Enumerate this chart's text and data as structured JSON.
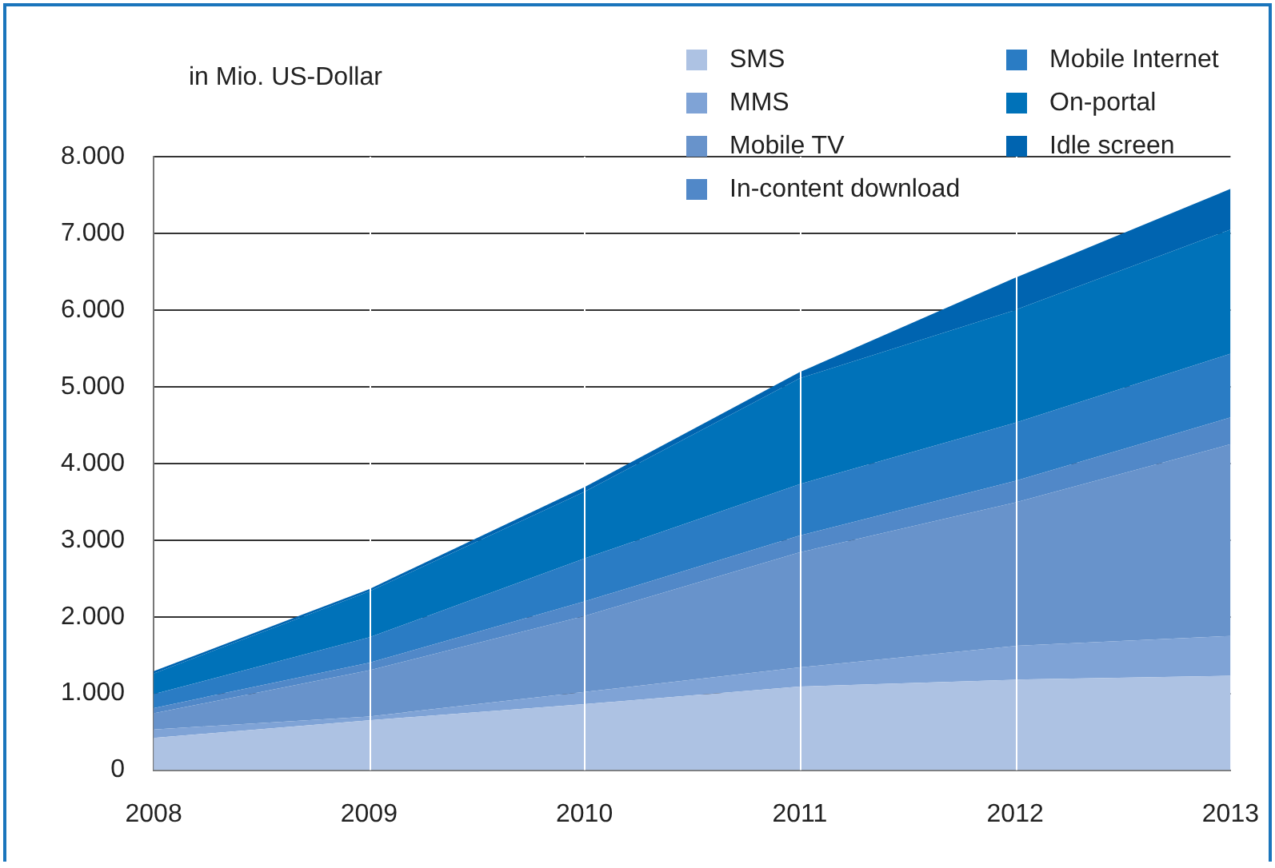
{
  "chart_data": {
    "type": "area",
    "ylabel": "in Mio. US-Dollar",
    "stacked": true,
    "legend": "top right",
    "grid": true,
    "categories": [
      "2008",
      "2009",
      "2010",
      "2011",
      "2012",
      "2013"
    ],
    "ylim": [
      0,
      8000
    ],
    "yticks": [
      0,
      {
        "value": 1000,
        "label": "1.000"
      },
      {
        "value": 2000,
        "label": "2.000"
      },
      {
        "value": 3000,
        "label": "3.000"
      },
      {
        "value": 4000,
        "label": "4.000"
      },
      {
        "value": 5000,
        "label": "5.000"
      },
      {
        "value": 6000,
        "label": "6.000"
      },
      {
        "value": 7000,
        "label": "7.000"
      },
      {
        "value": 8000,
        "label": "8.000"
      }
    ],
    "series": [
      {
        "name": "SMS",
        "color": "#adc2e3",
        "values": [
          420,
          650,
          860,
          1090,
          1180,
          1230
        ]
      },
      {
        "name": "MMS",
        "color": "#7fa3d6",
        "values": [
          110,
          50,
          160,
          250,
          440,
          520
        ]
      },
      {
        "name": "Mobile TV",
        "color": "#6893cb",
        "values": [
          210,
          600,
          990,
          1500,
          1870,
          2500
        ]
      },
      {
        "name": "In-content download",
        "color": "#5188c8",
        "values": [
          70,
          100,
          190,
          220,
          280,
          350
        ]
      },
      {
        "name": "Mobile Internet",
        "color": "#2a7cc4",
        "values": [
          180,
          330,
          560,
          670,
          760,
          830
        ]
      },
      {
        "name": "On-portal",
        "color": "#0072b9",
        "values": [
          270,
          600,
          870,
          1380,
          1470,
          1620
        ]
      },
      {
        "name": "Idle screen",
        "color": "#0064b0",
        "values": [
          30,
          30,
          60,
          80,
          420,
          530
        ]
      }
    ]
  }
}
